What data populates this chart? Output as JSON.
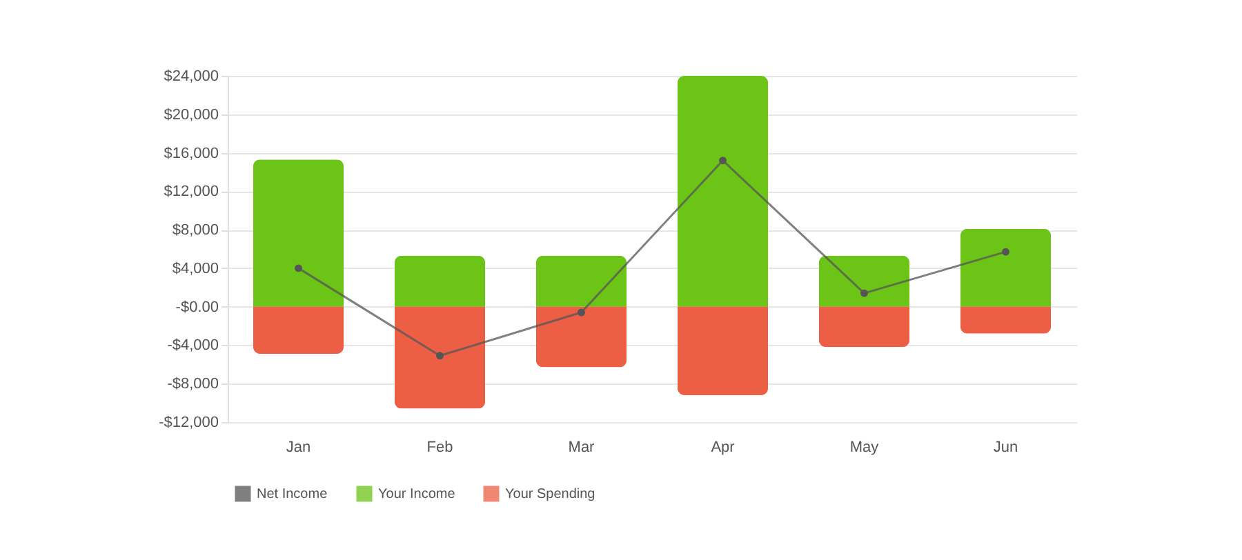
{
  "chart_data": {
    "type": "bar",
    "stacked": true,
    "categories": [
      "Jan",
      "Feb",
      "Mar",
      "Apr",
      "May",
      "Jun"
    ],
    "series": [
      {
        "name": "Net Income",
        "type": "line",
        "color": "#555555",
        "values": [
          4000,
          -5100,
          -600,
          15200,
          1400,
          5700
        ]
      },
      {
        "name": "Your Income",
        "color": "#6cc417",
        "values": [
          15300,
          5300,
          5300,
          24000,
          5300,
          8100
        ]
      },
      {
        "name": "Your Spending",
        "color": "#ec5f45",
        "values": [
          -4900,
          -10600,
          -6300,
          -9200,
          -4200,
          -2800
        ]
      }
    ],
    "ylim": [
      -12000,
      24000
    ],
    "yticks": [
      {
        "value": 24000,
        "label": "$24,000"
      },
      {
        "value": 20000,
        "label": "$20,000"
      },
      {
        "value": 16000,
        "label": "$16,000"
      },
      {
        "value": 12000,
        "label": "$12,000"
      },
      {
        "value": 8000,
        "label": "$8,000"
      },
      {
        "value": 4000,
        "label": "$4,000"
      },
      {
        "value": 0,
        "label": "-$0.00"
      },
      {
        "value": -4000,
        "label": "-$4,000"
      },
      {
        "value": -8000,
        "label": "-$8,000"
      },
      {
        "value": -12000,
        "label": "-$12,000"
      }
    ],
    "grid": "y",
    "marker": "circle",
    "legend": "bottom left"
  }
}
